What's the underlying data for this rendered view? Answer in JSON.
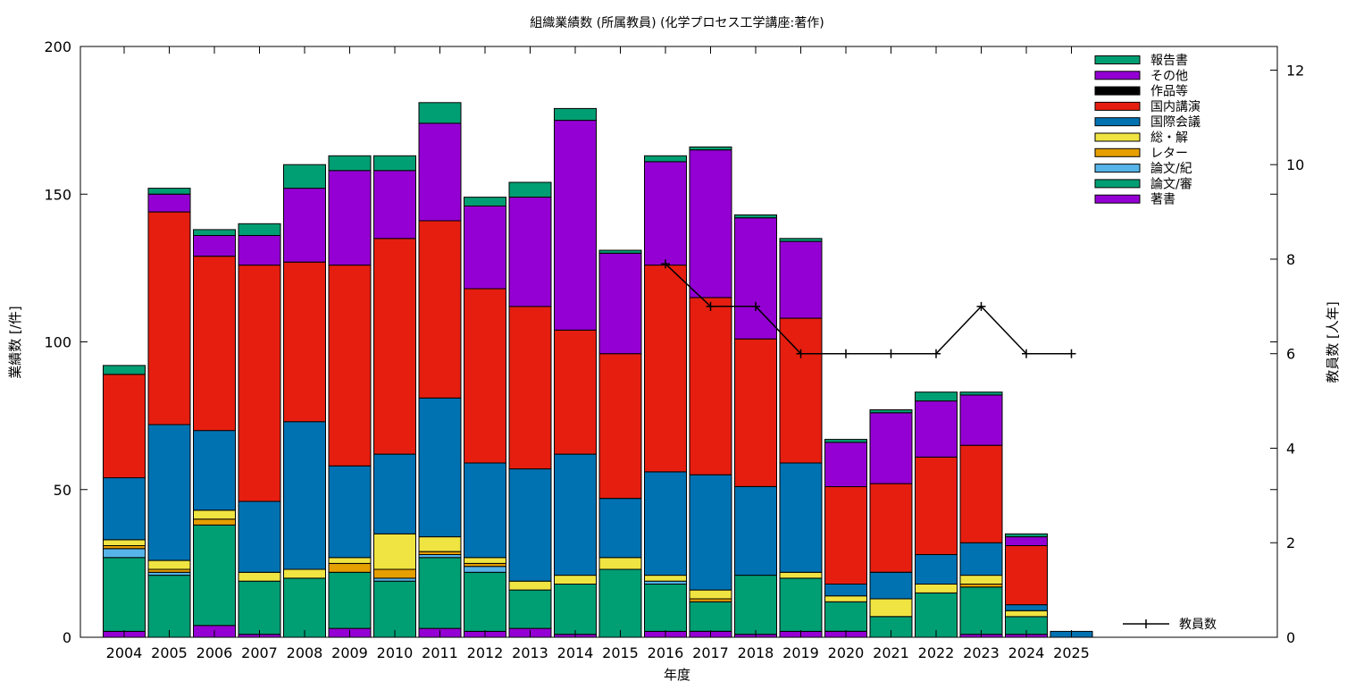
{
  "chart_data": {
    "type": "bar",
    "title": "組織業績数 (所属教員) (化学プロセス工学講座:著作)",
    "xlabel": "年度",
    "ylabel": "業績数 [/件]",
    "y2label": "教員数 [人年]",
    "ylim": [
      0,
      200
    ],
    "y2lim": [
      0,
      12.5
    ],
    "yticks": [
      0,
      50,
      100,
      150,
      200
    ],
    "y2ticks": [
      0,
      2,
      4,
      6,
      8,
      10,
      12
    ],
    "stacked": true,
    "legend_position": "top-right",
    "categories": [
      "2004",
      "2005",
      "2006",
      "2007",
      "2008",
      "2009",
      "2010",
      "2011",
      "2012",
      "2013",
      "2014",
      "2015",
      "2016",
      "2017",
      "2018",
      "2019",
      "2020",
      "2021",
      "2022",
      "2023",
      "2024",
      "2025"
    ],
    "series": [
      {
        "name": "著書",
        "color": "#9400d3",
        "values": [
          2,
          0,
          4,
          1,
          0,
          3,
          0,
          3,
          2,
          3,
          1,
          0,
          2,
          2,
          1,
          2,
          2,
          0,
          0,
          1,
          1,
          0
        ]
      },
      {
        "name": "論文/審",
        "color": "#009e73",
        "values": [
          25,
          21,
          34,
          18,
          20,
          19,
          19,
          24,
          20,
          13,
          17,
          23,
          16,
          10,
          20,
          18,
          10,
          7,
          15,
          16,
          6,
          0
        ]
      },
      {
        "name": "論文/紀",
        "color": "#56b4e9",
        "values": [
          3,
          1,
          0,
          0,
          0,
          0,
          1,
          1,
          2,
          0,
          0,
          0,
          1,
          0,
          0,
          0,
          0,
          0,
          0,
          0,
          0,
          0
        ]
      },
      {
        "name": "レター",
        "color": "#e69f00",
        "values": [
          1,
          1,
          2,
          0,
          0,
          3,
          3,
          1,
          1,
          0,
          0,
          0,
          0,
          1,
          0,
          0,
          0,
          0,
          0,
          1,
          0,
          0
        ]
      },
      {
        "name": "総・解",
        "color": "#f0e442",
        "values": [
          2,
          3,
          3,
          3,
          3,
          2,
          12,
          5,
          2,
          3,
          3,
          4,
          2,
          3,
          0,
          2,
          2,
          6,
          3,
          3,
          2,
          0
        ]
      },
      {
        "name": "国際会議",
        "color": "#0072b2",
        "values": [
          21,
          46,
          27,
          24,
          50,
          31,
          27,
          47,
          32,
          38,
          41,
          20,
          35,
          39,
          30,
          37,
          4,
          9,
          10,
          11,
          2,
          2
        ]
      },
      {
        "name": "国内講演",
        "color": "#e51e10",
        "values": [
          35,
          72,
          59,
          80,
          54,
          68,
          73,
          60,
          59,
          55,
          42,
          49,
          70,
          60,
          50,
          49,
          33,
          30,
          33,
          33,
          20,
          0
        ]
      },
      {
        "name": "作品等",
        "color": "#000000",
        "values": [
          0,
          0,
          0,
          0,
          0,
          0,
          0,
          0,
          0,
          0,
          0,
          0,
          0,
          0,
          0,
          0,
          0,
          0,
          0,
          0,
          0,
          0
        ]
      },
      {
        "name": "その他",
        "color": "#9400d3",
        "values": [
          0,
          6,
          7,
          10,
          25,
          32,
          23,
          33,
          28,
          37,
          71,
          34,
          35,
          50,
          41,
          26,
          15,
          24,
          19,
          17,
          3,
          0
        ]
      },
      {
        "name": "報告書",
        "color": "#009e73",
        "values": [
          3,
          2,
          2,
          4,
          8,
          5,
          5,
          7,
          3,
          5,
          4,
          1,
          2,
          1,
          1,
          1,
          1,
          1,
          3,
          1,
          1,
          0
        ]
      }
    ],
    "line_series": {
      "name": "教員数",
      "axis": "y2",
      "color": "#000000",
      "categories": [
        "2016",
        "2017",
        "2018",
        "2019",
        "2020",
        "2021",
        "2022",
        "2023",
        "2024",
        "2025"
      ],
      "values": [
        7.9,
        7,
        7,
        6,
        6,
        6,
        6,
        7,
        6,
        6
      ]
    }
  }
}
